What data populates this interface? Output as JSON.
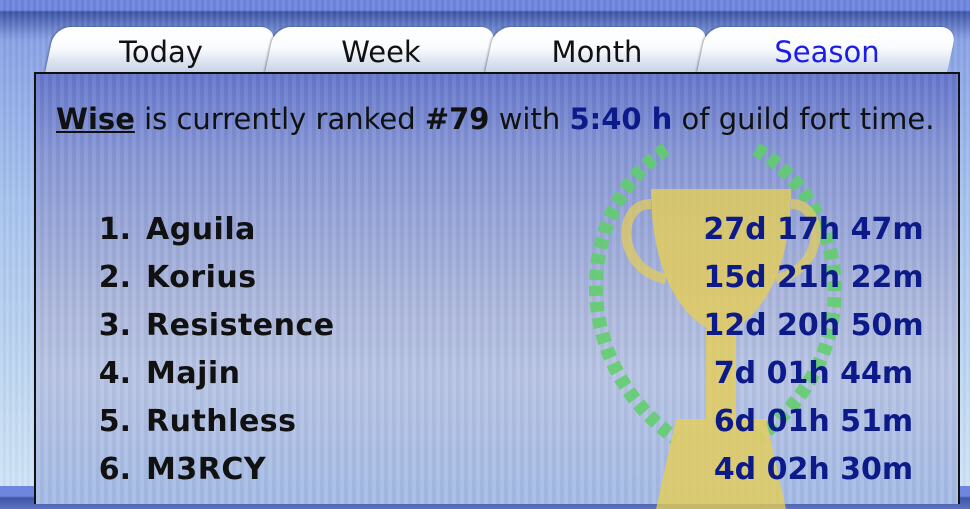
{
  "tabs": [
    {
      "label": "Today",
      "active": false
    },
    {
      "label": "Week",
      "active": false
    },
    {
      "label": "Month",
      "active": false
    },
    {
      "label": "Season",
      "active": true
    }
  ],
  "summary": {
    "player": "Wise",
    "text1": " is currently ranked ",
    "rank": "#79",
    "text2": " with ",
    "time": "5:40 h",
    "text3": " of guild fort time."
  },
  "colors": {
    "active_tab": "#1c1ce6",
    "time": "#0d1a8a"
  },
  "leaderboard": [
    {
      "rank": "1.",
      "name": "Aguila",
      "time": "27d 17h 47m"
    },
    {
      "rank": "2.",
      "name": "Korius",
      "time": "15d 21h 22m"
    },
    {
      "rank": "3.",
      "name": "Resistence",
      "time": "12d 20h 50m"
    },
    {
      "rank": "4.",
      "name": "Majin",
      "time": "7d 01h 44m"
    },
    {
      "rank": "5.",
      "name": "Ruthless",
      "time": "6d 01h 51m"
    },
    {
      "rank": "6.",
      "name": "M3RCY",
      "time": "4d 02h 30m"
    }
  ]
}
